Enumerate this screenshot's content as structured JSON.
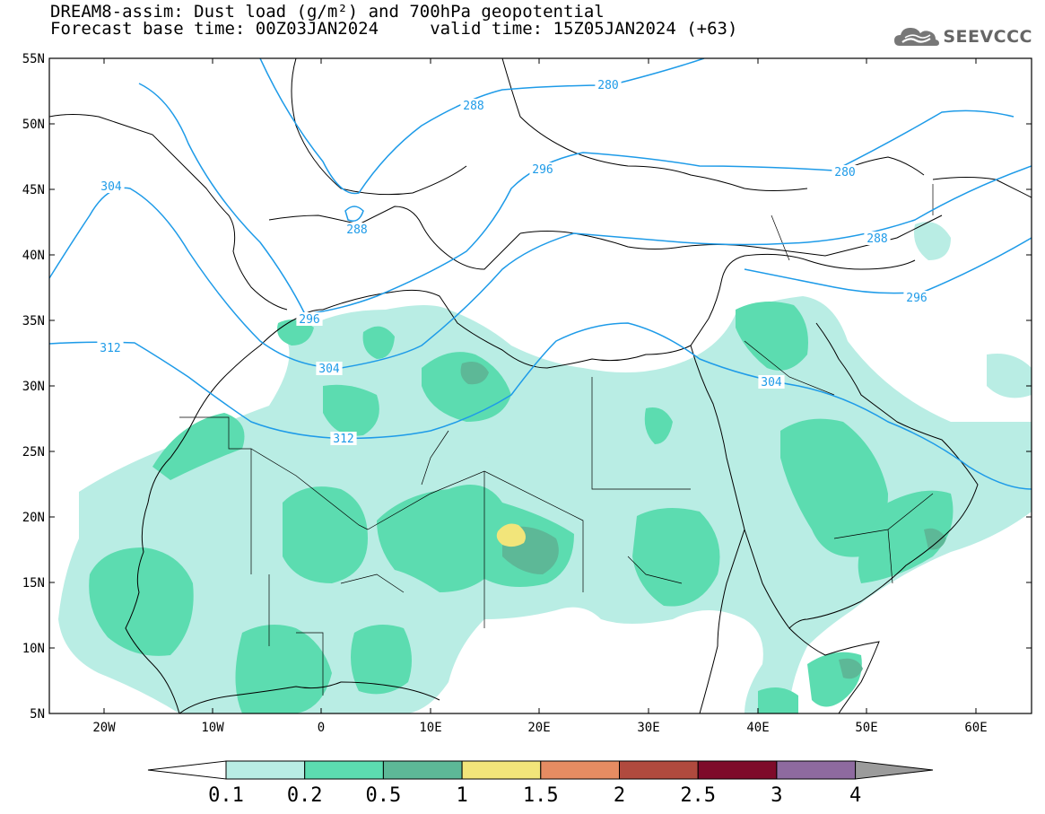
{
  "header": {
    "title_line1": "DREAM8-assim: Dust load (g/m²) and 700hPa geopotential",
    "title_line2": "Forecast base time: 00Z03JAN2024     valid time: 15Z05JAN2024 (+63)",
    "logo_text": "SEEVCCC",
    "logo_icon": "cloud-icon"
  },
  "map": {
    "lon_ticks": [
      "20W",
      "10W",
      "0",
      "10E",
      "20E",
      "30E",
      "40E",
      "50E",
      "60E"
    ],
    "lat_ticks": [
      "55N",
      "50N",
      "45N",
      "40N",
      "35N",
      "30N",
      "25N",
      "20N",
      "15N",
      "10N",
      "5N"
    ],
    "contour_labels": [
      "280",
      "288",
      "296",
      "304",
      "312",
      "288",
      "296",
      "304",
      "312",
      "280",
      "288",
      "296",
      "304"
    ],
    "colors": {
      "sea": "#ffffff",
      "coast": "#000000",
      "contour": "#1e9be8"
    }
  },
  "colorbar": {
    "tick_labels": [
      "0.1",
      "0.2",
      "0.5",
      "1",
      "1.5",
      "2",
      "2.5",
      "3",
      "4"
    ],
    "colors": [
      "#ffffff",
      "#b9ede4",
      "#5cdcb0",
      "#5db897",
      "#f2e57a",
      "#e68c62",
      "#b04a3e",
      "#7e0b2a",
      "#8e6a9f",
      "#9b9b9b"
    ]
  }
}
